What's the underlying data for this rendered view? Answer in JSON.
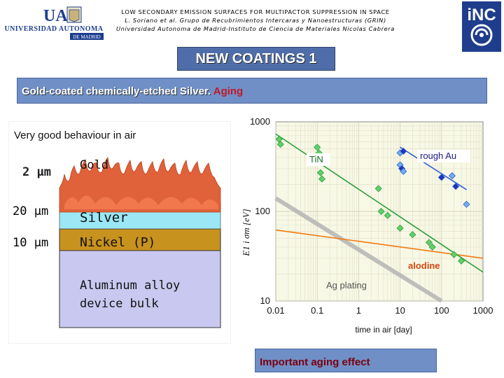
{
  "header": {
    "line1": "LOW SECONDARY EMISSION SURFACES FOR MULTIPACTOR SUPPRESSION IN SPACE",
    "line2": "L. Soriano et al. Grupo de Recubrimientos Intercaras y Nanoestructuras (GRIN)",
    "line3": "Universidad Autonoma de Madrid-Instituto de Ciencia de Materiales Nicolas Cabrera",
    "uam_logo_text": "UA",
    "uam_logo_name": "UNIVERSIDAD AUTONOMA",
    "uam_logo_city": "DE MADRID",
    "inc_logo_text": "iNC"
  },
  "slide": {
    "title": "NEW COATINGS 1",
    "subtitle_gold": "Gold",
    "subtitle_main": "-coated chemically-etched Silver.",
    "subtitle_aging": "Aging",
    "footer": "Important aging effect"
  },
  "schematic": {
    "caption": "Very good behaviour in air",
    "thickness_gold": "2 μm",
    "thickness_silver": "20 μm",
    "thickness_nickel": "10 μm",
    "layer_gold": "Gold",
    "layer_silver": "Silver",
    "layer_nickel": "Nickel (P)",
    "layer_substrate": "Aluminum alloy device bulk",
    "colors": {
      "gold_peaks": "#e0623a",
      "silver": "#9be7f5",
      "nickel": "#c8921e",
      "substrate": "#c8c8f0"
    }
  },
  "chart_data": {
    "type": "scatter",
    "xscale": "log",
    "yscale": "log",
    "xlim": [
      0.01,
      1000
    ],
    "ylim": [
      10,
      1000
    ],
    "xticks": [
      "0.01",
      "0.1",
      "1",
      "10",
      "100",
      "1000"
    ],
    "yticks": [
      "10",
      "100",
      "1000"
    ],
    "xlabel": "time in air  [day]",
    "ylabel": "E1 i σm  [eV]",
    "grid": true,
    "series": [
      {
        "name": "TiN",
        "color": "#2e9e3e",
        "marker": "diamond",
        "fill": "#5fd06a",
        "points": [
          [
            0.012,
            640
          ],
          [
            0.013,
            560
          ],
          [
            0.1,
            520
          ],
          [
            0.11,
            450
          ],
          [
            0.12,
            270
          ],
          [
            0.13,
            230
          ],
          [
            3,
            180
          ],
          [
            3.5,
            100
          ],
          [
            5,
            90
          ],
          [
            10,
            65
          ],
          [
            20,
            55
          ],
          [
            50,
            45
          ],
          [
            60,
            40
          ],
          [
            200,
            33
          ],
          [
            300,
            28
          ]
        ],
        "fit": [
          [
            0.01,
            730
          ],
          [
            1000,
            21
          ]
        ]
      },
      {
        "name": "rough Au",
        "color": "#2d5fd4",
        "marker": "diamond",
        "fill": "#6fb0e8",
        "points": [
          [
            10,
            450
          ],
          [
            12,
            470
          ],
          [
            10,
            330
          ],
          [
            11,
            300
          ],
          [
            12,
            280
          ],
          [
            100,
            240
          ],
          [
            180,
            250
          ],
          [
            220,
            190
          ],
          [
            400,
            120
          ]
        ],
        "fit": [
          [
            10,
            520
          ],
          [
            400,
            175
          ]
        ]
      },
      {
        "name": "alodine",
        "color": "#f07a10",
        "marker": "none",
        "fit": [
          [
            0.01,
            62
          ],
          [
            1000,
            30
          ]
        ]
      },
      {
        "name": "Ag plating",
        "color": "#b4b4b4",
        "marker": "none",
        "fit": [
          [
            0.01,
            140
          ],
          [
            100,
            10
          ]
        ]
      }
    ]
  }
}
